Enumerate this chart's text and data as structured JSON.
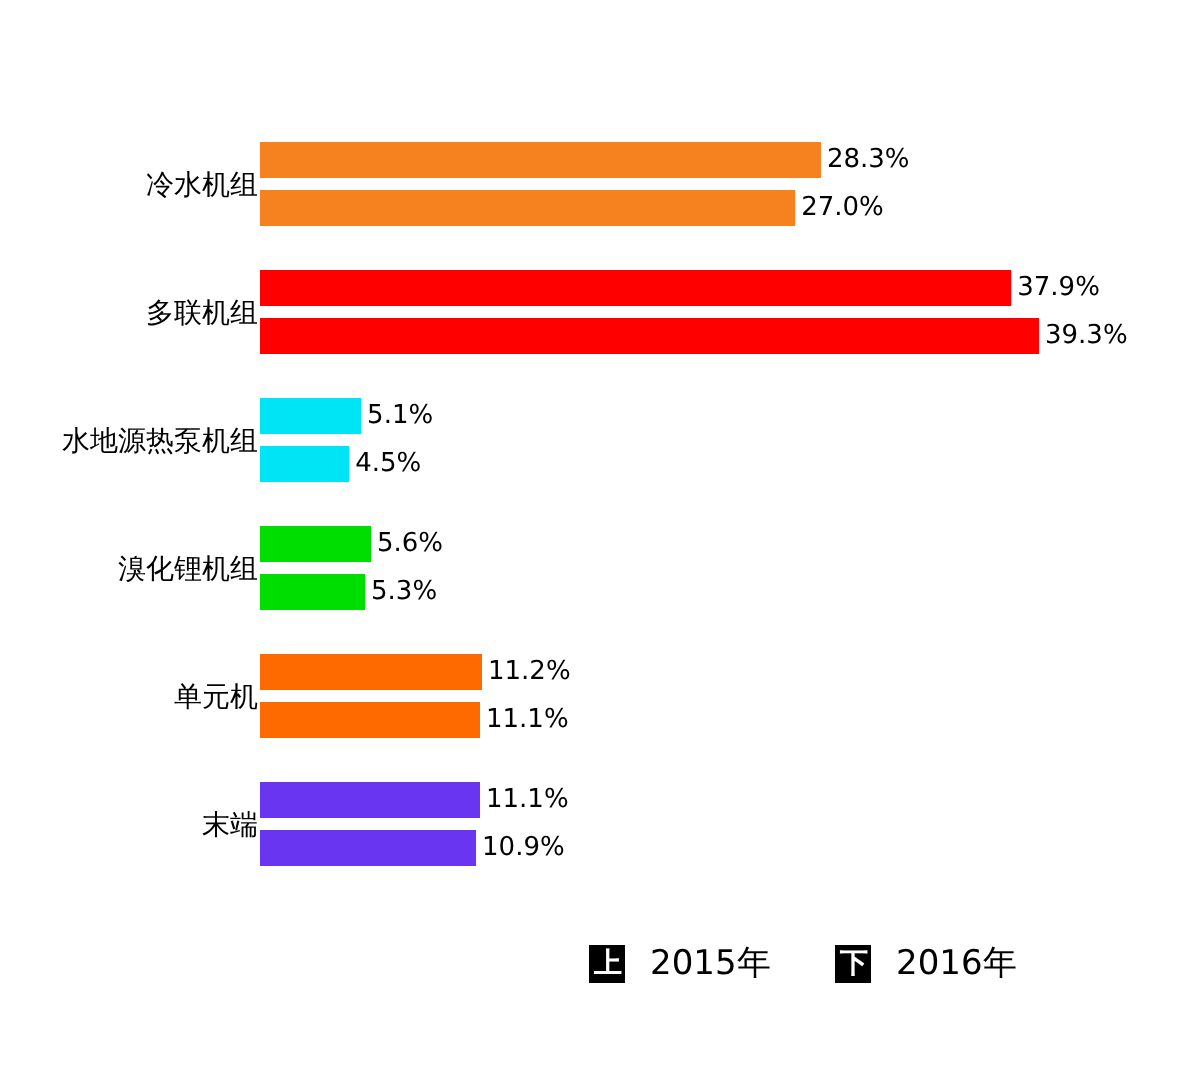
{
  "chart_data": {
    "type": "bar",
    "orientation": "horizontal",
    "categories": [
      "冷水机组",
      "多联机组",
      "水地源热泵机组",
      "溴化锂机组",
      "单元机",
      "末端"
    ],
    "series": [
      {
        "name": "2015年",
        "colors": [
          "#f5821f",
          "#ff0000",
          "#00e5f5",
          "#00dd00",
          "#ff6a00",
          "#6a35f0"
        ],
        "values": [
          28.3,
          37.9,
          5.1,
          5.6,
          11.2,
          11.1
        ],
        "value_labels": [
          "28.3%",
          "37.9%",
          "5.1%",
          "5.6%",
          "11.2%",
          "11.1%"
        ]
      },
      {
        "name": "2016年",
        "colors": [
          "#f5821f",
          "#ff0000",
          "#00e5f5",
          "#00dd00",
          "#ff6a00",
          "#6a35f0"
        ],
        "values": [
          27.0,
          39.3,
          4.5,
          5.3,
          11.1,
          10.9
        ],
        "value_labels": [
          "27.0%",
          "39.3%",
          "4.5%",
          "5.3%",
          "11.1%",
          "10.9%"
        ]
      }
    ],
    "annotations": [
      "上",
      "下"
    ],
    "legend": "bottom right"
  }
}
